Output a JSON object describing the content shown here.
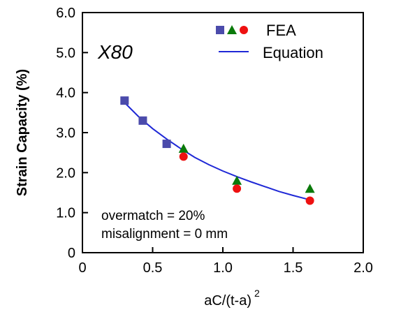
{
  "chart_data": {
    "type": "scatter",
    "title": "",
    "xlabel": "aC/(t-a)",
    "xlabel_superscript": "2",
    "ylabel": "Strain Capacity (%)",
    "xlim": [
      0,
      2.0
    ],
    "ylim": [
      0,
      6.0
    ],
    "xticks": [
      "0",
      "0.5",
      "1.0",
      "1.5",
      "2.0"
    ],
    "yticks": [
      "0",
      "1.0",
      "2.0",
      "3.0",
      "4.0",
      "5.0",
      "6.0"
    ],
    "grid": false,
    "legend": {
      "placement": "top-right",
      "fea_label": "FEA",
      "equation_label": "Equation"
    },
    "annotations": {
      "grade": "X80",
      "overmatch": "overmatch = 20%",
      "misalignment": "misalignment = 0 mm"
    },
    "colors": {
      "squares": "#4b4bab",
      "triangles": "#0a7a0a",
      "circles": "#ee1111",
      "equation": "#1f28d6"
    },
    "series": [
      {
        "marker": "square",
        "x": [
          0.3,
          0.43,
          0.6
        ],
        "y": [
          3.8,
          3.3,
          2.72
        ]
      },
      {
        "marker": "triangle",
        "x": [
          0.72,
          1.1,
          1.62
        ],
        "y": [
          2.6,
          1.8,
          1.6
        ]
      },
      {
        "marker": "circle",
        "x": [
          0.72,
          1.1,
          1.62
        ],
        "y": [
          2.4,
          1.6,
          1.3
        ]
      },
      {
        "marker": "line",
        "x": [
          0.3,
          0.4,
          0.5,
          0.6,
          0.7,
          0.8,
          0.9,
          1.0,
          1.1,
          1.2,
          1.3,
          1.4,
          1.5,
          1.62
        ],
        "y": [
          3.75,
          3.4,
          3.1,
          2.84,
          2.6,
          2.38,
          2.2,
          2.04,
          1.9,
          1.77,
          1.65,
          1.53,
          1.43,
          1.32
        ]
      }
    ]
  }
}
